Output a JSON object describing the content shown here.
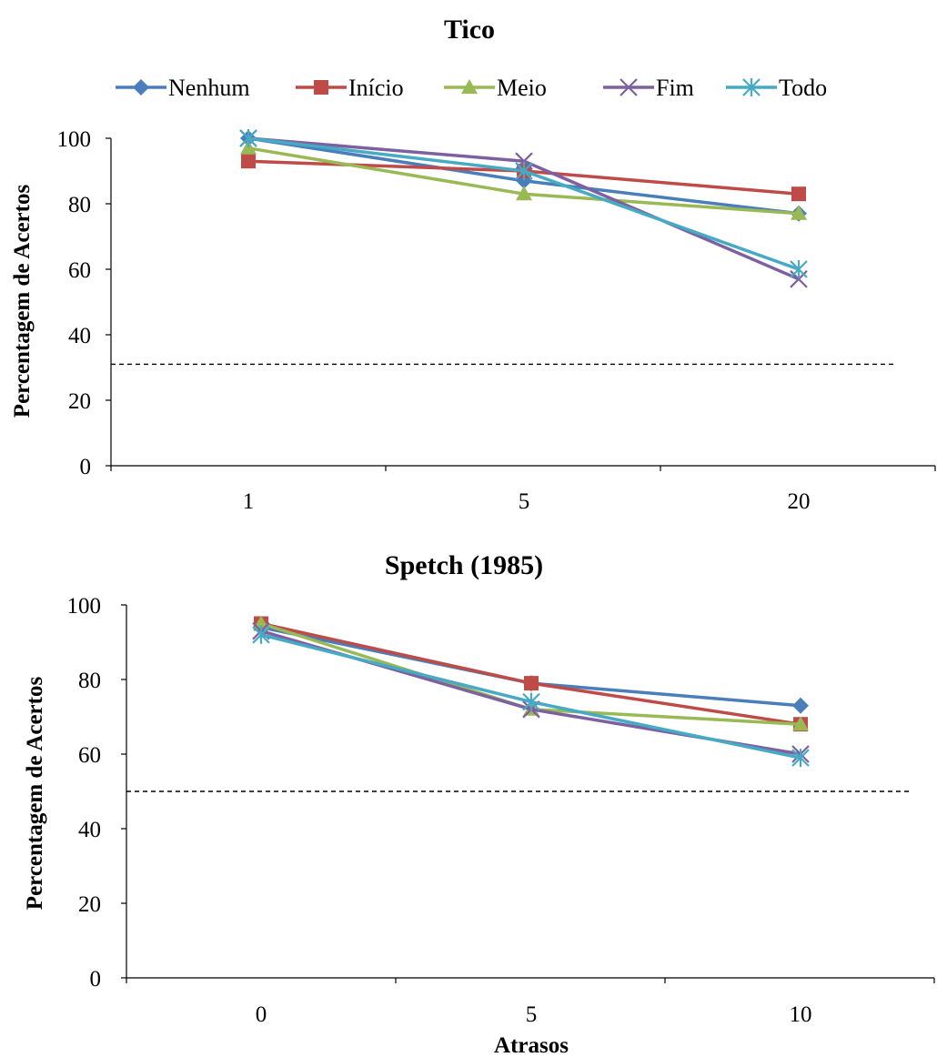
{
  "legend": {
    "entries": [
      {
        "label": "Nenhum",
        "color": "#4A7EBB",
        "marker": "diamond"
      },
      {
        "label": "Início",
        "color": "#BE4B48",
        "marker": "square"
      },
      {
        "label": "Meio",
        "color": "#98B954",
        "marker": "triangle"
      },
      {
        "label": "Fim",
        "color": "#7D60A0",
        "marker": "x-cross"
      },
      {
        "label": "Todo",
        "color": "#46AAC5",
        "marker": "star-cross"
      }
    ]
  },
  "chart_data": [
    {
      "type": "line",
      "title": "Tico",
      "ylabel": "Percentagem de Acertos",
      "xlabel": "",
      "categories": [
        "1",
        "5",
        "20"
      ],
      "ylim": [
        0,
        100
      ],
      "yticks": [
        0,
        20,
        40,
        60,
        80,
        100
      ],
      "grid": false,
      "legend_position": "top",
      "chance_line": 31,
      "series": [
        {
          "name": "Nenhum",
          "values": [
            100,
            87,
            77
          ]
        },
        {
          "name": "Início",
          "values": [
            93,
            90,
            83
          ]
        },
        {
          "name": "Meio",
          "values": [
            97,
            83,
            77
          ]
        },
        {
          "name": "Fim",
          "values": [
            100,
            93,
            57
          ]
        },
        {
          "name": "Todo",
          "values": [
            100,
            90,
            60
          ]
        }
      ]
    },
    {
      "type": "line",
      "title": "Spetch (1985)",
      "ylabel": "Percentagem de Acertos",
      "xlabel": "Atrasos",
      "categories": [
        "0",
        "5",
        "10"
      ],
      "ylim": [
        0,
        100
      ],
      "yticks": [
        0,
        20,
        40,
        60,
        80,
        100
      ],
      "grid": false,
      "legend_position": "none",
      "chance_line": 50,
      "series": [
        {
          "name": "Nenhum",
          "values": [
            94,
            79,
            73
          ]
        },
        {
          "name": "Início",
          "values": [
            95,
            79,
            68
          ]
        },
        {
          "name": "Meio",
          "values": [
            95,
            72,
            68
          ]
        },
        {
          "name": "Fim",
          "values": [
            93,
            72,
            60
          ]
        },
        {
          "name": "Todo",
          "values": [
            92,
            74,
            59
          ]
        }
      ]
    }
  ]
}
